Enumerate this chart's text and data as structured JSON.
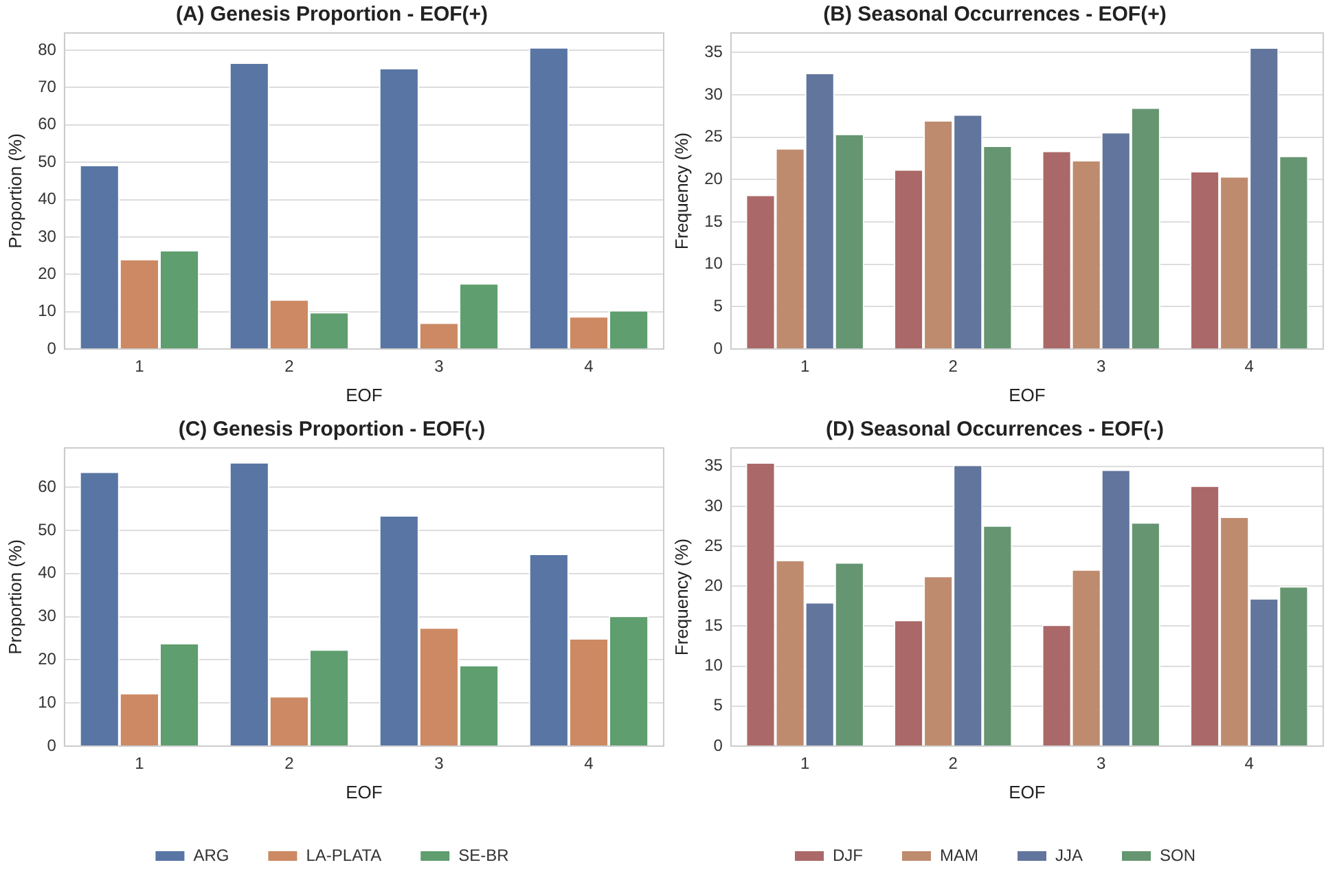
{
  "chart_data": [
    {
      "type": "bar",
      "title": "(A) Genesis Proportion - EOF(+)",
      "xlabel": "EOF",
      "ylabel": "Proportion (%)",
      "categories": [
        "1",
        "2",
        "3",
        "4"
      ],
      "series": [
        {
          "color": "#5875a4",
          "values": [
            49.3,
            76.7,
            75.2,
            80.8
          ]
        },
        {
          "color": "#cc8963",
          "values": [
            24.1,
            13.3,
            7.1,
            8.8
          ]
        },
        {
          "color": "#5f9e6e",
          "values": [
            26.5,
            9.9,
            17.6,
            10.4
          ]
        }
      ],
      "ylim": [
        0,
        84.6
      ],
      "yticks": [
        0,
        10,
        20,
        30,
        40,
        50,
        60,
        70,
        80
      ],
      "grid": "y",
      "legend": false
    },
    {
      "type": "bar",
      "title": "(B) Seasonal Occurrences - EOF(+)",
      "xlabel": "EOF",
      "ylabel": "Frequency (%)",
      "categories": [
        "1",
        "2",
        "3",
        "4"
      ],
      "series": [
        {
          "color": "#ab6868",
          "values": [
            18.2,
            21.2,
            23.4,
            21.0
          ]
        },
        {
          "color": "#bf8b6e",
          "values": [
            23.7,
            27.0,
            22.3,
            20.4
          ]
        },
        {
          "color": "#62759c",
          "values": [
            32.6,
            27.7,
            25.6,
            35.6
          ]
        },
        {
          "color": "#659671",
          "values": [
            25.4,
            24.0,
            28.5,
            22.8
          ]
        }
      ],
      "ylim": [
        0,
        37.3
      ],
      "yticks": [
        0,
        5,
        10,
        15,
        20,
        25,
        30,
        35
      ],
      "grid": "y",
      "legend": false
    },
    {
      "type": "bar",
      "title": "(C) Genesis Proportion - EOF(-)",
      "xlabel": "EOF",
      "ylabel": "Proportion (%)",
      "categories": [
        "1",
        "2",
        "3",
        "4"
      ],
      "series": [
        {
          "name": "ARG",
          "color": "#5875a4",
          "values": [
            63.6,
            65.8,
            53.5,
            44.6
          ]
        },
        {
          "name": "LA-PLATA",
          "color": "#cc8963",
          "values": [
            12.3,
            11.6,
            27.5,
            25.0
          ]
        },
        {
          "name": "SE-BR",
          "color": "#5f9e6e",
          "values": [
            23.9,
            22.4,
            18.8,
            30.2
          ]
        }
      ],
      "ylim": [
        0,
        69.1
      ],
      "yticks": [
        0,
        10,
        20,
        30,
        40,
        50,
        60
      ],
      "grid": "y",
      "legend": "bottom"
    },
    {
      "type": "bar",
      "title": "(D) Seasonal Occurrences - EOF(-)",
      "xlabel": "EOF",
      "ylabel": "Frequency (%)",
      "categories": [
        "1",
        "2",
        "3",
        "4"
      ],
      "series": [
        {
          "name": "DJF",
          "color": "#ab6868",
          "values": [
            35.5,
            15.8,
            15.2,
            32.6
          ]
        },
        {
          "name": "MAM",
          "color": "#bf8b6e",
          "values": [
            23.3,
            21.3,
            22.1,
            28.7
          ]
        },
        {
          "name": "JJA",
          "color": "#62759c",
          "values": [
            18.0,
            35.2,
            34.6,
            18.5
          ]
        },
        {
          "name": "SON",
          "color": "#659671",
          "values": [
            23.0,
            27.6,
            28.0,
            20.0
          ]
        }
      ],
      "ylim": [
        0,
        37.3
      ],
      "yticks": [
        0,
        5,
        10,
        15,
        20,
        25,
        30,
        35
      ],
      "grid": "y",
      "legend": "bottom"
    }
  ]
}
